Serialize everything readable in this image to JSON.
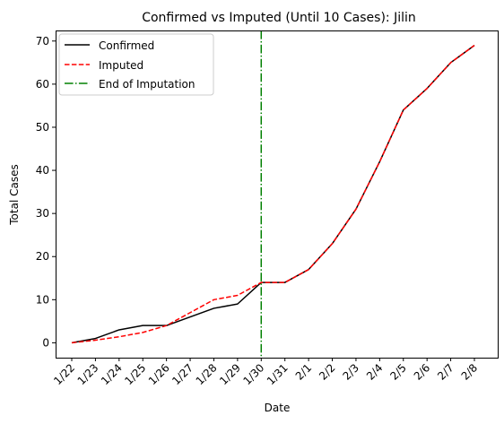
{
  "chart_data": {
    "type": "line",
    "title": "Confirmed vs Imputed (Until 10 Cases): Jilin",
    "xlabel": "Date",
    "ylabel": "Total Cases",
    "categories": [
      "1/22",
      "1/23",
      "1/24",
      "1/25",
      "1/26",
      "1/27",
      "1/28",
      "1/29",
      "1/30",
      "1/31",
      "2/1",
      "2/2",
      "2/3",
      "2/4",
      "2/5",
      "2/6",
      "2/7",
      "2/8"
    ],
    "y_ticks": [
      0,
      10,
      20,
      30,
      40,
      50,
      60,
      70
    ],
    "ylim": [
      -3.45,
      72.45
    ],
    "grid": false,
    "legend_position": "upper-left",
    "series": [
      {
        "name": "Confirmed",
        "color": "#000000",
        "style": "solid",
        "values": [
          0,
          1,
          3,
          4,
          4,
          6,
          8,
          9,
          14,
          14,
          17,
          23,
          31,
          42,
          54,
          59,
          65,
          69
        ]
      },
      {
        "name": "Imputed",
        "color": "#ff0000",
        "style": "dashed",
        "values": [
          0,
          0.6,
          1.4,
          2.4,
          4,
          7,
          10,
          11,
          14,
          14,
          17,
          23,
          31,
          42,
          54,
          59,
          65,
          69
        ]
      }
    ],
    "vline": {
      "name": "End of Imputation",
      "at": "1/30",
      "color": "#008000",
      "style": "dashdot"
    }
  }
}
